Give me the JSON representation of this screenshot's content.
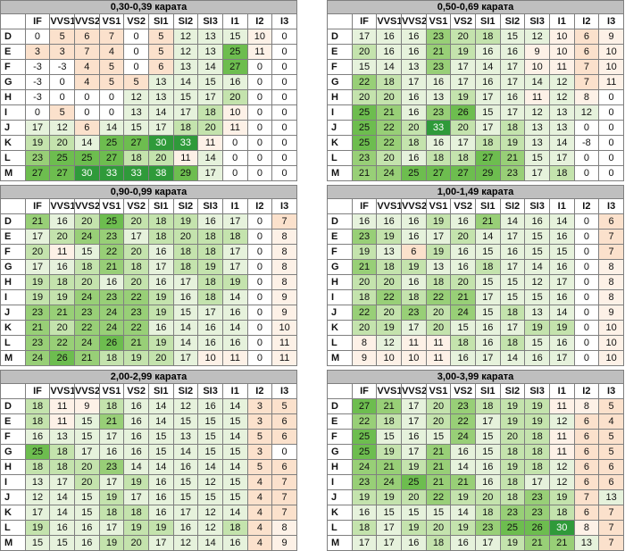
{
  "columns": [
    "IF",
    "VVS1",
    "VVS2",
    "VS1",
    "VS2",
    "SI1",
    "SI2",
    "SI3",
    "I1",
    "I2",
    "I3"
  ],
  "rows": [
    "D",
    "E",
    "F",
    "G",
    "H",
    "I",
    "J",
    "K",
    "L",
    "M"
  ],
  "colors": {
    "title_bg": "#bfbfbf",
    "green_light": "#d9efc8",
    "green_mid": "#a9d78c",
    "green_dark": "#2f9a3a",
    "orange": "#fbe1cc"
  },
  "tables": [
    {
      "title": "0,30-0,39 карата",
      "values": [
        [
          0,
          5,
          6,
          7,
          0,
          5,
          12,
          13,
          15,
          10,
          0
        ],
        [
          3,
          3,
          7,
          4,
          0,
          5,
          12,
          13,
          25,
          11,
          0
        ],
        [
          -3,
          -3,
          4,
          5,
          0,
          6,
          13,
          14,
          27,
          0,
          0
        ],
        [
          -3,
          0,
          4,
          5,
          5,
          13,
          14,
          15,
          16,
          0,
          0
        ],
        [
          -3,
          0,
          0,
          0,
          12,
          13,
          15,
          17,
          20,
          0,
          0
        ],
        [
          0,
          5,
          0,
          0,
          13,
          14,
          17,
          18,
          10,
          0,
          0
        ],
        [
          17,
          12,
          6,
          14,
          15,
          17,
          18,
          20,
          11,
          0,
          0
        ],
        [
          19,
          20,
          14,
          25,
          27,
          30,
          33,
          11,
          0,
          0,
          0
        ],
        [
          23,
          25,
          25,
          27,
          18,
          20,
          11,
          14,
          0,
          0,
          0
        ],
        [
          27,
          27,
          30,
          33,
          33,
          38,
          29,
          17,
          0,
          0,
          0
        ]
      ]
    },
    {
      "title": "0,50-0,69 карата",
      "values": [
        [
          17,
          16,
          16,
          23,
          20,
          18,
          15,
          12,
          10,
          6,
          9
        ],
        [
          20,
          16,
          16,
          21,
          19,
          16,
          16,
          9,
          10,
          6,
          10
        ],
        [
          15,
          14,
          13,
          23,
          17,
          14,
          17,
          10,
          11,
          7,
          10
        ],
        [
          22,
          18,
          17,
          16,
          17,
          16,
          17,
          14,
          12,
          7,
          11
        ],
        [
          20,
          20,
          16,
          13,
          19,
          17,
          16,
          11,
          12,
          8,
          0
        ],
        [
          25,
          21,
          16,
          23,
          26,
          15,
          17,
          12,
          13,
          12,
          0
        ],
        [
          25,
          22,
          20,
          33,
          20,
          17,
          18,
          13,
          13,
          0,
          0
        ],
        [
          25,
          22,
          18,
          16,
          17,
          18,
          19,
          13,
          14,
          -8,
          0
        ],
        [
          23,
          20,
          16,
          18,
          18,
          27,
          21,
          15,
          17,
          0,
          0
        ],
        [
          21,
          24,
          25,
          27,
          27,
          29,
          23,
          17,
          18,
          0,
          0
        ]
      ]
    },
    {
      "title": "0,90-0,99 карата",
      "values": [
        [
          21,
          16,
          20,
          25,
          20,
          18,
          19,
          16,
          17,
          0,
          7
        ],
        [
          17,
          20,
          24,
          23,
          17,
          18,
          20,
          18,
          18,
          0,
          8
        ],
        [
          20,
          11,
          15,
          22,
          20,
          16,
          18,
          18,
          17,
          0,
          8
        ],
        [
          17,
          16,
          18,
          21,
          18,
          17,
          18,
          19,
          17,
          0,
          8
        ],
        [
          19,
          18,
          20,
          16,
          20,
          16,
          17,
          18,
          19,
          0,
          8
        ],
        [
          19,
          19,
          24,
          23,
          22,
          19,
          16,
          18,
          14,
          0,
          9
        ],
        [
          23,
          21,
          23,
          24,
          23,
          19,
          15,
          17,
          16,
          0,
          9
        ],
        [
          21,
          20,
          22,
          24,
          22,
          16,
          14,
          16,
          14,
          0,
          10
        ],
        [
          23,
          22,
          24,
          26,
          21,
          19,
          14,
          16,
          16,
          0,
          11
        ],
        [
          24,
          26,
          21,
          18,
          19,
          20,
          17,
          10,
          11,
          0,
          11
        ]
      ]
    },
    {
      "title": "1,00-1,49 карата",
      "values": [
        [
          16,
          16,
          16,
          19,
          16,
          21,
          14,
          16,
          14,
          0,
          6
        ],
        [
          23,
          19,
          16,
          17,
          20,
          14,
          17,
          15,
          16,
          0,
          7
        ],
        [
          19,
          13,
          6,
          19,
          16,
          15,
          16,
          15,
          15,
          0,
          7
        ],
        [
          21,
          18,
          19,
          13,
          16,
          18,
          17,
          14,
          16,
          0,
          8
        ],
        [
          20,
          20,
          16,
          18,
          20,
          15,
          15,
          12,
          17,
          0,
          8
        ],
        [
          18,
          22,
          18,
          22,
          21,
          17,
          15,
          15,
          16,
          0,
          8
        ],
        [
          22,
          20,
          23,
          20,
          24,
          15,
          18,
          13,
          14,
          0,
          9
        ],
        [
          20,
          19,
          17,
          20,
          15,
          16,
          17,
          19,
          19,
          0,
          10
        ],
        [
          8,
          12,
          11,
          11,
          18,
          16,
          18,
          15,
          16,
          0,
          10
        ],
        [
          9,
          10,
          10,
          11,
          16,
          17,
          14,
          16,
          17,
          0,
          10
        ]
      ]
    },
    {
      "title": "2,00-2,99 карата",
      "values": [
        [
          18,
          11,
          9,
          18,
          16,
          14,
          12,
          16,
          14,
          3,
          5
        ],
        [
          18,
          11,
          15,
          21,
          16,
          14,
          15,
          15,
          15,
          3,
          6
        ],
        [
          16,
          13,
          15,
          17,
          16,
          15,
          13,
          15,
          14,
          5,
          6
        ],
        [
          25,
          18,
          17,
          16,
          16,
          15,
          14,
          15,
          15,
          3,
          0
        ],
        [
          18,
          18,
          20,
          23,
          14,
          14,
          16,
          14,
          14,
          5,
          6
        ],
        [
          13,
          17,
          20,
          17,
          19,
          16,
          15,
          12,
          15,
          4,
          7
        ],
        [
          12,
          14,
          15,
          19,
          17,
          16,
          15,
          15,
          15,
          4,
          7
        ],
        [
          17,
          14,
          15,
          18,
          18,
          16,
          17,
          12,
          14,
          4,
          7
        ],
        [
          19,
          16,
          16,
          17,
          19,
          19,
          16,
          12,
          18,
          4,
          8
        ],
        [
          15,
          15,
          16,
          19,
          20,
          17,
          12,
          14,
          16,
          4,
          9
        ]
      ]
    },
    {
      "title": "3,00-3,99 карата",
      "values": [
        [
          27,
          21,
          17,
          20,
          23,
          18,
          19,
          19,
          11,
          8,
          5
        ],
        [
          22,
          18,
          17,
          20,
          22,
          17,
          19,
          19,
          12,
          6,
          4
        ],
        [
          25,
          15,
          16,
          15,
          24,
          15,
          20,
          18,
          11,
          6,
          5
        ],
        [
          25,
          19,
          17,
          21,
          16,
          15,
          18,
          18,
          11,
          6,
          5
        ],
        [
          24,
          21,
          19,
          21,
          14,
          16,
          19,
          18,
          12,
          6,
          6
        ],
        [
          23,
          24,
          25,
          21,
          21,
          16,
          18,
          17,
          12,
          6,
          6
        ],
        [
          19,
          19,
          20,
          22,
          19,
          20,
          18,
          23,
          19,
          7,
          13
        ],
        [
          16,
          15,
          15,
          15,
          14,
          18,
          23,
          23,
          18,
          6,
          7
        ],
        [
          18,
          17,
          19,
          20,
          19,
          23,
          25,
          26,
          30,
          8,
          7
        ],
        [
          17,
          17,
          16,
          18,
          16,
          17,
          19,
          21,
          21,
          13,
          7
        ]
      ]
    }
  ]
}
